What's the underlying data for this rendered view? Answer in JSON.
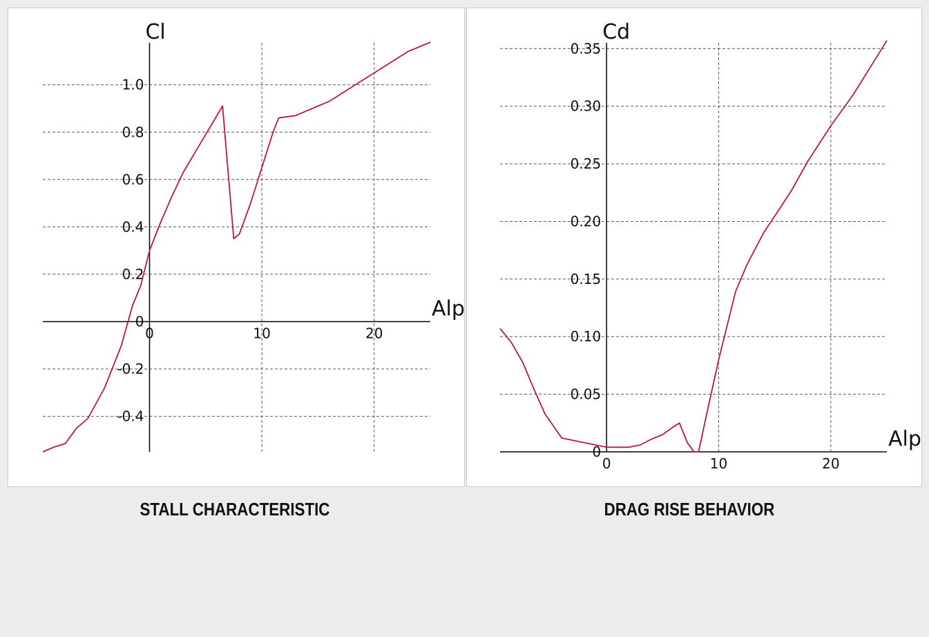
{
  "colors": {
    "background": "#ececec",
    "panel": "#ffffff",
    "curve": "#c0124a",
    "grid": "#555555",
    "axis": "#000000"
  },
  "captions": {
    "left": "STALL CHARACTERISTIC",
    "right": "DRAG RISE BEHAVIOR"
  },
  "chart_data": [
    {
      "type": "line",
      "title": "STALL CHARACTERISTIC",
      "xlabel": "Alp",
      "ylabel": "Cl",
      "xlim": [
        -9.5,
        25
      ],
      "ylim": [
        -0.55,
        1.18
      ],
      "x_ticks": [
        0,
        10,
        20
      ],
      "x_tick_labels": [
        "0",
        "10",
        "20"
      ],
      "y_ticks": [
        1.0,
        0.8,
        0.6,
        0.4,
        0.2,
        0,
        -0.2,
        -0.4
      ],
      "y_tick_labels": [
        "1.0",
        "0.8",
        "0.6",
        "0.4",
        "0.2",
        "0",
        "-0.2",
        "-0.4"
      ],
      "grid": true,
      "series": [
        {
          "x": [
            -9.5,
            -8.5,
            -7.5,
            -6.5,
            -5.5,
            -4,
            -2.5,
            -1.5,
            -0.8,
            0,
            1,
            2,
            3,
            4,
            5,
            6,
            6.5,
            7.5,
            8,
            9,
            10,
            11,
            11.5,
            13,
            14,
            15,
            16,
            17,
            18,
            19,
            20,
            21,
            22,
            23,
            24,
            25
          ],
          "y": [
            -0.55,
            -0.53,
            -0.515,
            -0.45,
            -0.41,
            -0.28,
            -0.1,
            0.07,
            0.15,
            0.3,
            0.42,
            0.53,
            0.63,
            0.71,
            0.79,
            0.87,
            0.91,
            0.35,
            0.37,
            0.5,
            0.65,
            0.8,
            0.86,
            0.87,
            0.89,
            0.91,
            0.93,
            0.96,
            0.99,
            1.02,
            1.05,
            1.08,
            1.11,
            1.14,
            1.16,
            1.18
          ]
        }
      ]
    },
    {
      "type": "line",
      "title": "DRAG RISE BEHAVIOR",
      "xlabel": "Alp",
      "ylabel": "Cd",
      "xlim": [
        -9.5,
        25
      ],
      "ylim": [
        0,
        0.355
      ],
      "x_ticks": [
        0,
        10,
        20
      ],
      "x_tick_labels": [
        "0",
        "10",
        "20"
      ],
      "y_ticks": [
        0.35,
        0.3,
        0.25,
        0.2,
        0.15,
        0.1,
        0.05,
        0
      ],
      "y_tick_labels": [
        "0.35",
        "0.30",
        "0.25",
        "0.20",
        "0.15",
        "0.10",
        "0.05",
        "0"
      ],
      "grid": true,
      "series": [
        {
          "x": [
            -9.5,
            -8.5,
            -7.5,
            -6.5,
            -5.5,
            -4,
            -2,
            0,
            1,
            2,
            3,
            4,
            5,
            6,
            6.5,
            7.2,
            7.8,
            8.2,
            9,
            10,
            11.5,
            12.5,
            14,
            15.5,
            16.5,
            18,
            20,
            22,
            25
          ],
          "y": [
            0.107,
            0.095,
            0.078,
            0.055,
            0.033,
            0.012,
            0.008,
            0.004,
            0.004,
            0.004,
            0.006,
            0.011,
            0.015,
            0.022,
            0.025,
            0.008,
            0.0,
            0.0,
            0.036,
            0.08,
            0.139,
            0.162,
            0.19,
            0.212,
            0.227,
            0.253,
            0.283,
            0.31,
            0.357
          ]
        }
      ]
    }
  ]
}
